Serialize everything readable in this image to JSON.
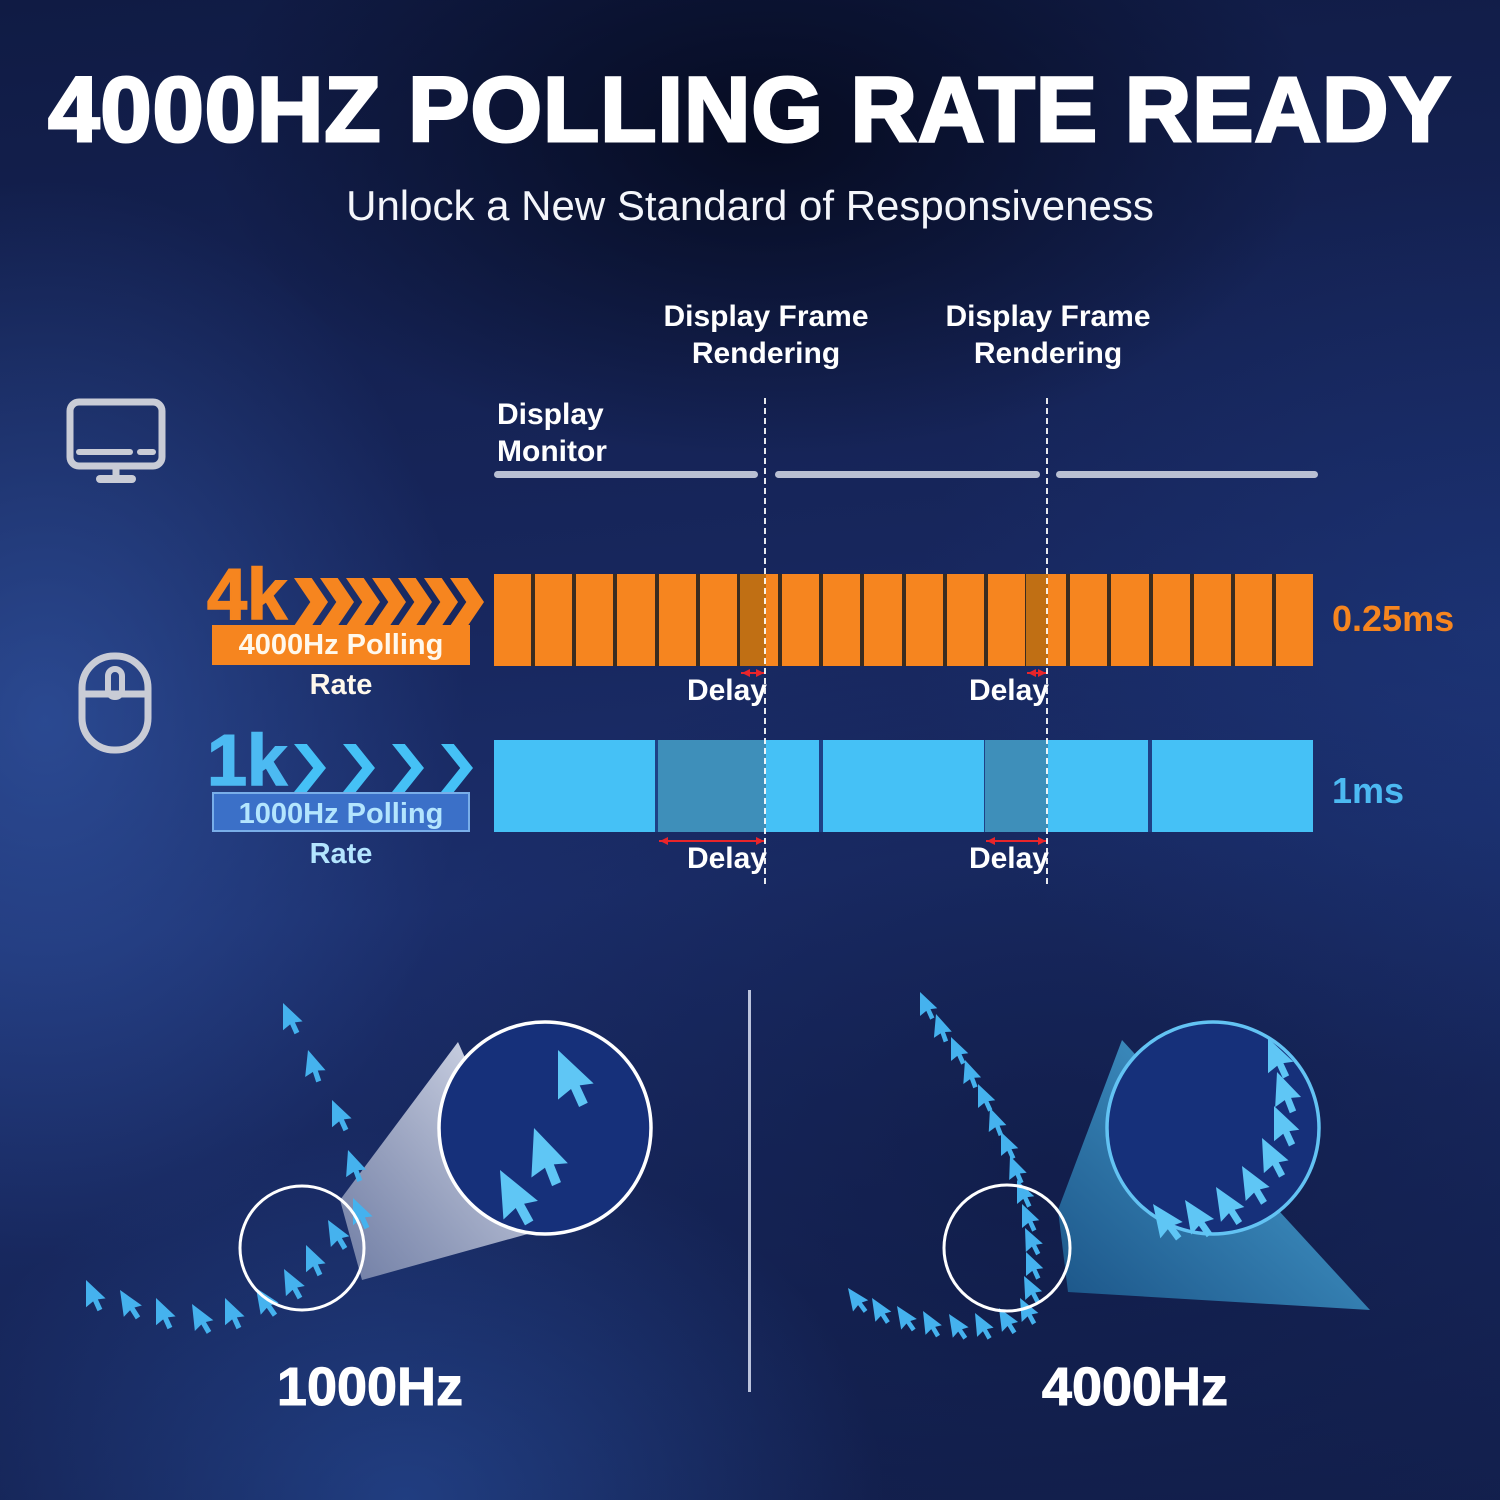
{
  "header": {
    "title": "4000HZ POLLING RATE READY",
    "subtitle": "Unlock a New Standard of Responsiveness"
  },
  "timeline": {
    "frame_labels": [
      "Display Frame Rendering",
      "Display Frame Rendering"
    ],
    "monitor_label_line1": "Display",
    "monitor_label_line2": "Monitor",
    "delay_label": "Delay",
    "rows": {
      "fast": {
        "badge": "4k",
        "chevrons": 7,
        "label": "4000Hz Polling Rate",
        "latency": "0.25ms",
        "segments": 20,
        "delays": [
          {
            "start": 0.3,
            "end": 0.332
          },
          {
            "start": 0.65,
            "end": 0.677
          }
        ],
        "color": "#f6851f",
        "delay_color": "#c06f14"
      },
      "slow": {
        "badge": "1k",
        "chevrons": 4,
        "label": "1000Hz Polling Rate",
        "latency": "1ms",
        "segments": 5,
        "delays": [
          {
            "start": 0.2,
            "end": 0.332
          },
          {
            "start": 0.6,
            "end": 0.677
          }
        ],
        "color": "#45c1f6",
        "delay_color": "#3e8fba"
      }
    }
  },
  "comparison": {
    "left_label": "1000Hz",
    "right_label": "4000Hz"
  },
  "icons": {
    "monitor": "display-monitor-icon",
    "mouse": "gaming-mouse-icon"
  },
  "colors": {
    "accent_orange": "#f6851f",
    "accent_blue": "#45c1f6",
    "delay_marker_red": "#e8252a",
    "background_navy": "#16265c",
    "line_gray": "#b9c0d3"
  }
}
